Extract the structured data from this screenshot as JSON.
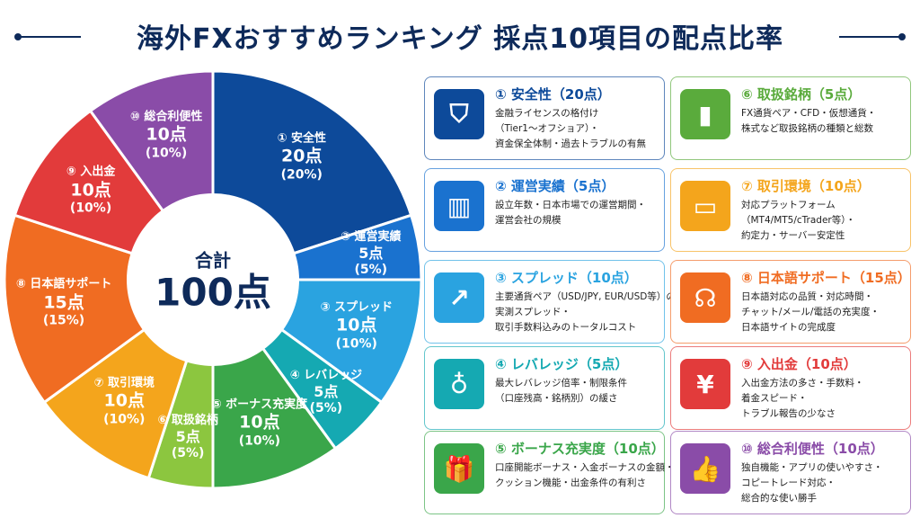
{
  "title": "海外FXおすすめランキング 採点10項目の配点比率",
  "center": {
    "label": "合計",
    "total": "100点"
  },
  "chart_data": {
    "type": "pie",
    "title": "海外FXおすすめランキング 採点10項目の配点比率",
    "categories": [
      "① 安全性",
      "② 運営実績",
      "③ スプレッド",
      "④ レバレッジ",
      "⑤ ボーナス充実度",
      "⑥ 取扱銘柄",
      "⑦ 取引環境",
      "⑧ 日本語サポート",
      "⑨ 入出金",
      "⑩ 総合利便性"
    ],
    "values": [
      20,
      5,
      10,
      5,
      10,
      5,
      10,
      15,
      10,
      10
    ],
    "point_labels": [
      "20点",
      "5点",
      "10点",
      "5点",
      "10点",
      "5点",
      "10点",
      "15点",
      "10点",
      "10点"
    ],
    "percent_labels": [
      "(20%)",
      "(5%)",
      "(10%)",
      "(5%)",
      "(10%)",
      "(5%)",
      "(10%)",
      "(15%)",
      "(10%)",
      "(10%)"
    ],
    "colors": [
      "#0d4a9a",
      "#1a72cf",
      "#2aa3e0",
      "#15a9b2",
      "#3aa64a",
      "#8cc63f",
      "#f4a51c",
      "#f06c22",
      "#e23b3b",
      "#8a4ca8"
    ]
  },
  "cards": [
    {
      "title": "① 安全性（20点）",
      "color": "#0d4a9a",
      "icon": "shield-icon",
      "glyph": "⛉",
      "desc": [
        "金融ライセンスの格付け",
        "（Tier1〜オフショア）・",
        "資金保全体制・過去トラブルの有無"
      ]
    },
    {
      "title": "② 運営実績（5点）",
      "color": "#1a72cf",
      "icon": "building-icon",
      "glyph": "▥",
      "desc": [
        "設立年数・日本市場での運営期間・",
        "運営会社の規模"
      ]
    },
    {
      "title": "③ スプレッド（10点）",
      "color": "#2aa3e0",
      "icon": "trend-up-icon",
      "glyph": "↗",
      "desc": [
        "主要通貨ペア（USD/JPY, EUR/USD等）の",
        "実測スプレッド・",
        "取引手数料込みのトータルコスト"
      ]
    },
    {
      "title": "④ レバレッジ（5点）",
      "color": "#15a9b2",
      "icon": "leverage-icon",
      "glyph": "♁",
      "desc": [
        "最大レバレッジ倍率・制限条件",
        "（口座残高・銘柄別）の緩さ"
      ]
    },
    {
      "title": "⑤ ボーナス充実度（10点）",
      "color": "#3aa64a",
      "icon": "gift-icon",
      "glyph": "🎁",
      "desc": [
        "口座開能ボーナス・入金ボーナスの金額・",
        "クッション機能・出金条件の有利さ"
      ]
    },
    {
      "title": "⑥ 取扱銘柄（5点）",
      "color": "#5aab3c",
      "icon": "bar-chart-icon",
      "glyph": "▮",
      "desc": [
        "FX通貨ペア・CFD・仮想通貨・",
        "株式など取扱銘柄の種類と総数"
      ]
    },
    {
      "title": "⑦ 取引環境（10点）",
      "color": "#f4a51c",
      "icon": "monitor-icon",
      "glyph": "▭",
      "desc": [
        "対応プラットフォーム",
        "（MT4/MT5/cTrader等）・",
        "約定力・サーバー安定性"
      ]
    },
    {
      "title": "⑧ 日本語サポート（15点）",
      "color": "#f06c22",
      "icon": "headset-icon",
      "glyph": "☊",
      "desc": [
        "日本語対応の品質・対応時間・",
        "チャット/メール/電話の充実度・",
        "日本語サイトの完成度"
      ]
    },
    {
      "title": "⑨ 入出金（10点）",
      "color": "#e23b3b",
      "icon": "yen-icon",
      "glyph": "¥",
      "desc": [
        "入出金方法の多さ・手数料・",
        "着金スピード・",
        "トラブル報告の少なさ"
      ]
    },
    {
      "title": "⑩ 総合利便性（10点）",
      "color": "#8a4ca8",
      "icon": "thumbs-up-icon",
      "glyph": "👍",
      "desc": [
        "独自機能・アプリの使いやすさ・",
        "コピートレード対応・",
        "総合的な使い勝手"
      ]
    }
  ]
}
